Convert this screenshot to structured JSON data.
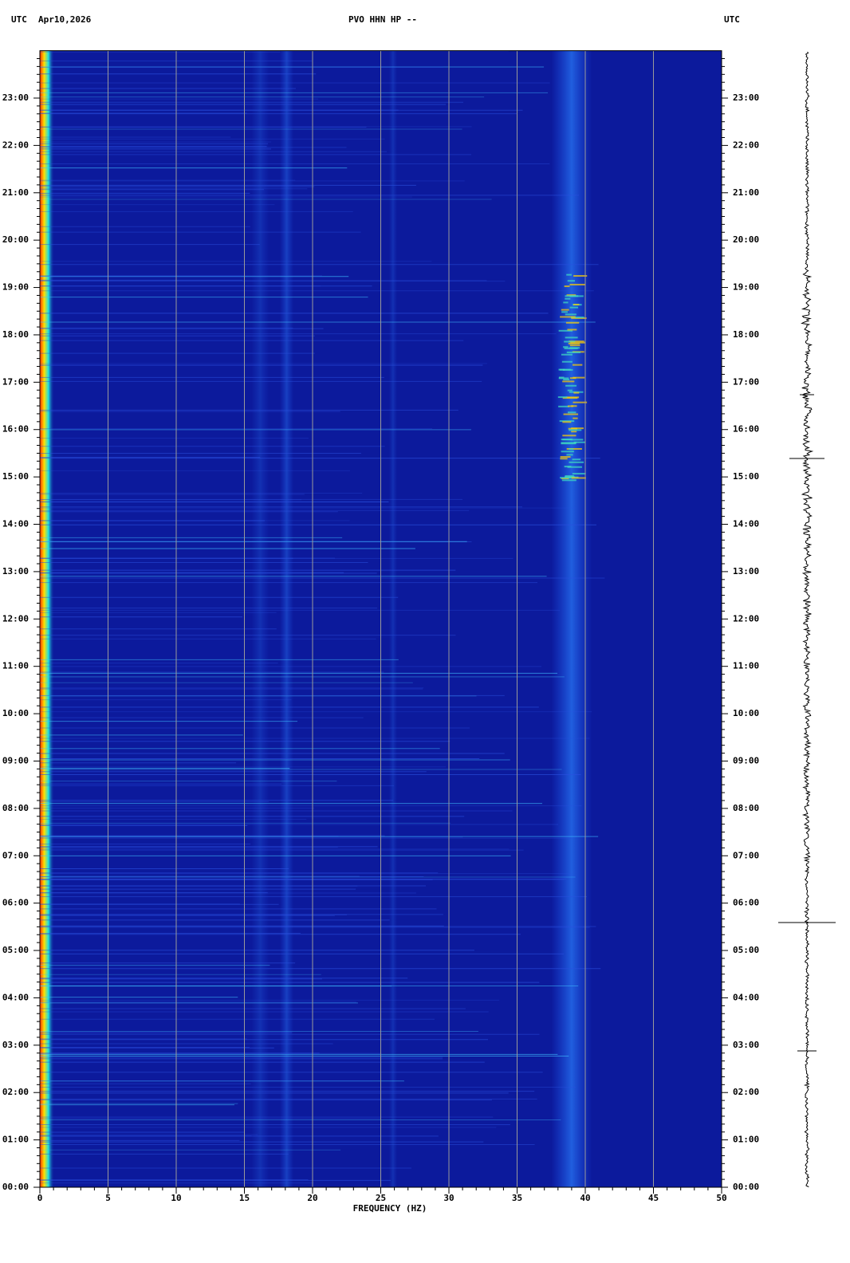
{
  "chart_data": {
    "type": "spectrogram",
    "title": "PVO HHN HP --",
    "date": "Apr10,2026",
    "timezone": "UTC",
    "xlabel": "FREQUENCY (HZ)",
    "xlim": [
      0,
      50
    ],
    "xticks": [
      0,
      5,
      10,
      15,
      20,
      25,
      30,
      35,
      40,
      45,
      50
    ],
    "ylim": [
      0,
      24
    ],
    "yticks": [
      {
        "value": 0,
        "label": "00:00"
      },
      {
        "value": 1,
        "label": "01:00"
      },
      {
        "value": 2,
        "label": "02:00"
      },
      {
        "value": 3,
        "label": "03:00"
      },
      {
        "value": 4,
        "label": "04:00"
      },
      {
        "value": 5,
        "label": "05:00"
      },
      {
        "value": 6,
        "label": "06:00"
      },
      {
        "value": 7,
        "label": "07:00"
      },
      {
        "value": 8,
        "label": "08:00"
      },
      {
        "value": 9,
        "label": "09:00"
      },
      {
        "value": 10,
        "label": "10:00"
      },
      {
        "value": 11,
        "label": "11:00"
      },
      {
        "value": 12,
        "label": "12:00"
      },
      {
        "value": 13,
        "label": "13:00"
      },
      {
        "value": 14,
        "label": "14:00"
      },
      {
        "value": 15,
        "label": "15:00"
      },
      {
        "value": 16,
        "label": "16:00"
      },
      {
        "value": 17,
        "label": "17:00"
      },
      {
        "value": 18,
        "label": "18:00"
      },
      {
        "value": 19,
        "label": "19:00"
      },
      {
        "value": 20,
        "label": "20:00"
      },
      {
        "value": 21,
        "label": "21:00"
      },
      {
        "value": 22,
        "label": "22:00"
      },
      {
        "value": 23,
        "label": "23:00"
      }
    ],
    "grid": true,
    "grid_color": "#9a9a9a",
    "color": "#0c1a9c"
  }
}
